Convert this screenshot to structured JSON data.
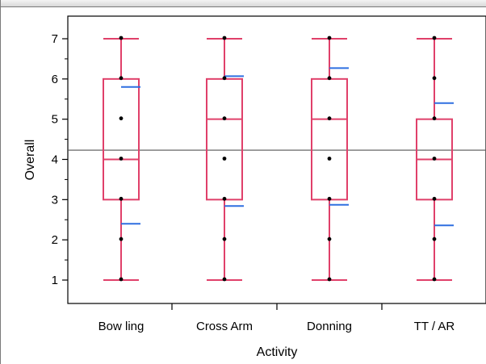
{
  "chart_data": {
    "type": "boxplot",
    "xlabel": "Activity",
    "ylabel": "Overall",
    "ylim": [
      0.5,
      7.5
    ],
    "yticks": [
      1,
      2,
      3,
      4,
      5,
      6,
      7
    ],
    "reference_line": 4.23,
    "grid": false,
    "categories": [
      "Bow ling",
      "Cross Arm",
      "Donning",
      "TT / AR"
    ],
    "boxes": [
      {
        "min": 1,
        "q1": 3,
        "median": 4,
        "q3": 6,
        "max": 7,
        "mean_plus_sd": 5.8,
        "mean_minus_sd": 2.4,
        "points": [
          1,
          2,
          3,
          4,
          5,
          6,
          7
        ]
      },
      {
        "min": 1,
        "q1": 3,
        "median": 5,
        "q3": 6,
        "max": 7,
        "mean_plus_sd": 6.07,
        "mean_minus_sd": 2.84,
        "points": [
          1,
          2,
          3,
          4,
          5,
          6,
          7
        ]
      },
      {
        "min": 1,
        "q1": 3,
        "median": 5,
        "q3": 6,
        "max": 7,
        "mean_plus_sd": 6.27,
        "mean_minus_sd": 2.87,
        "points": [
          1,
          2,
          3,
          4,
          5,
          6,
          7
        ]
      },
      {
        "min": 1,
        "q1": 3,
        "median": 4,
        "q3": 5,
        "max": 7,
        "mean_plus_sd": 5.4,
        "mean_minus_sd": 2.36,
        "points": [
          1,
          2,
          3,
          4,
          5,
          6,
          7
        ]
      }
    ]
  },
  "colors": {
    "box": "#e0406a",
    "sd_marker": "#2f6fe0",
    "point": "#000000",
    "reference_line": "#555555",
    "axis": "#000000"
  }
}
